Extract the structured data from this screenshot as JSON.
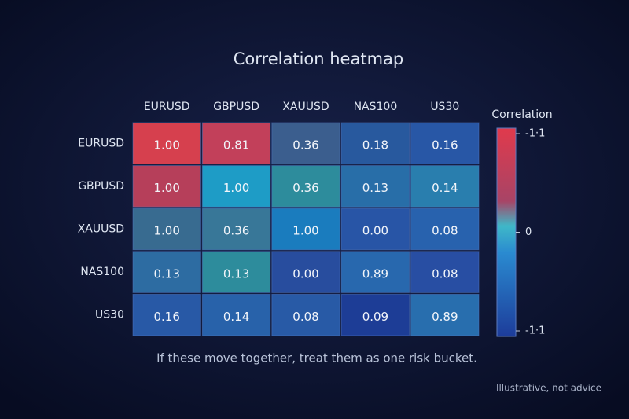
{
  "chart_data": {
    "type": "heatmap",
    "title": "Correlation heatmap",
    "x_categories": [
      "EURUSD",
      "GBPUSD",
      "XAUUSD",
      "NAS100",
      "US30"
    ],
    "y_categories": [
      "EURUSD",
      "GBPUSD",
      "XAUUSD",
      "NAS100",
      "US30"
    ],
    "values": [
      [
        1,
        0.81,
        0.36,
        0.18,
        0.16
      ],
      [
        1,
        1,
        0.36,
        0.13,
        0.14
      ],
      [
        1,
        0.36,
        1,
        0,
        0.08
      ],
      [
        0.13,
        0.13,
        0,
        0.89,
        0.08
      ],
      [
        0.16,
        0.14,
        0.08,
        0.09,
        0.89
      ]
    ],
    "value_labels": [
      [
        "1.00",
        "0.81",
        "0.36",
        "0.18",
        "0.16"
      ],
      [
        "1.00",
        "1.00",
        "0.36",
        "0.13",
        "0.14"
      ],
      [
        "1.00",
        "0.36",
        "1.00",
        "0.00",
        "0.08"
      ],
      [
        "0.13",
        "0.13",
        "0.00",
        "0.89",
        "0.08"
      ],
      [
        "0.16",
        "0.14",
        "0.08",
        "0.09",
        "0.89"
      ]
    ],
    "colors": [
      [
        "#d6404e",
        "#c2405a",
        "#3b5e8e",
        "#28599e",
        "#2857a6"
      ],
      [
        "#b63f5a",
        "#1e9cc6",
        "#2d8c9c",
        "#286ea8",
        "#297eae"
      ],
      [
        "#386b90",
        "#387798",
        "#1a7cbe",
        "#2855a6",
        "#2862ae"
      ],
      [
        "#2d6ca2",
        "#2d8c9c",
        "#284d9e",
        "#2868ae",
        "#284ea3"
      ],
      [
        "#2859a6",
        "#2862aa",
        "#285aa6",
        "#1d3d96",
        "#286eae"
      ]
    ],
    "colorbar_title": "Correlation",
    "clim": [
      -1,
      1
    ],
    "cticks": [
      {
        "value": 1,
        "label": "-1·1"
      },
      0,
      {
        "value": -1,
        "label": "-1·1"
      }
    ],
    "annotation": "If these move together, treat them as one risk bucket.",
    "footnote": "Illustrative, not advice"
  }
}
